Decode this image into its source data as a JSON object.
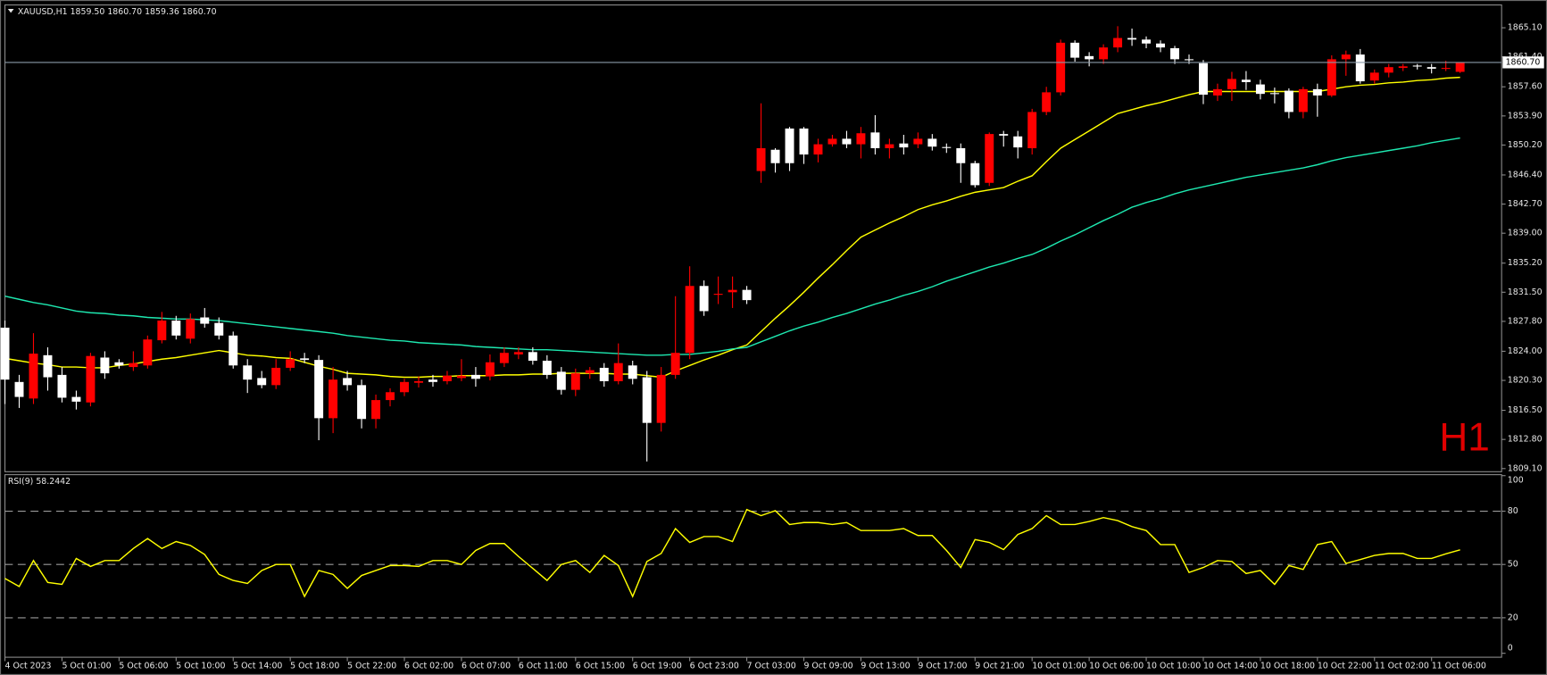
{
  "chart_data": {
    "type": "candlestick",
    "title": "XAUUSD,H1  1859.50 1860.70 1859.36 1860.70",
    "watermark": "H1",
    "categories": [
      "4 Oct 2023",
      null,
      null,
      null,
      "5 Oct 01:00",
      null,
      null,
      null,
      "5 Oct 06:00",
      null,
      null,
      null,
      "5 Oct 10:00",
      null,
      null,
      null,
      "5 Oct 14:00",
      null,
      null,
      null,
      "5 Oct 18:00",
      null,
      null,
      null,
      "5 Oct 22:00",
      null,
      null,
      null,
      "6 Oct 02:00",
      null,
      null,
      null,
      "6 Oct 07:00",
      null,
      null,
      null,
      "6 Oct 11:00",
      null,
      null,
      null,
      "6 Oct 15:00",
      null,
      null,
      null,
      "6 Oct 19:00",
      null,
      null,
      null,
      "6 Oct 23:00",
      null,
      null,
      null,
      "7 Oct 03:00",
      null,
      null,
      null,
      "9 Oct 09:00",
      null,
      null,
      null,
      "9 Oct 13:00",
      null,
      null,
      null,
      "9 Oct 17:00",
      null,
      null,
      null,
      "9 Oct 21:00",
      null,
      null,
      null,
      "10 Oct 01:00",
      null,
      null,
      null,
      "10 Oct 06:00",
      null,
      null,
      null,
      "10 Oct 10:00",
      null,
      null,
      null,
      "10 Oct 14:00",
      null,
      null,
      null,
      "10 Oct 18:00",
      null,
      null,
      null,
      "10 Oct 22:00",
      null,
      null,
      null,
      "11 Oct 02:00",
      null,
      null,
      null,
      "11 Oct 06:00",
      null,
      null
    ],
    "open": [
      1827.0,
      1820.1,
      1818.0,
      1823.5,
      1821.0,
      1818.2,
      1817.5,
      1823.2,
      1822.6,
      1822.0,
      1822.2,
      1825.4,
      1827.9,
      1825.6,
      1828.3,
      1827.6,
      1826.0,
      1822.2,
      1820.6,
      1819.7,
      1821.9,
      1823.1,
      1822.9,
      1815.5,
      1820.6,
      1819.7,
      1815.4,
      1817.8,
      1818.8,
      1820.0,
      1820.4,
      1820.2,
      1820.6,
      1821.0,
      1820.8,
      1822.5,
      1823.6,
      1823.9,
      1822.8,
      1821.4,
      1819.1,
      1821.2,
      1821.9,
      1820.2,
      1822.2,
      1820.7,
      1814.9,
      1821.0,
      1823.8,
      1832.3,
      1831.2,
      1831.5,
      1831.8,
      1846.9,
      1849.6,
      1852.3,
      1852.3,
      1849.0,
      1850.3,
      1851.0,
      1850.3,
      1851.8,
      1849.8,
      1850.4,
      1850.3,
      1851.0,
      1849.95,
      1849.8,
      1847.9,
      1845.4,
      1851.6,
      1851.3,
      1849.8,
      1854.4,
      1856.9,
      1863.2,
      1861.5,
      1861.1,
      1862.6,
      1863.8,
      1863.6,
      1863.1,
      1862.5,
      1861.1,
      1860.6,
      1856.5,
      1857.3,
      1858.5,
      1857.9,
      1856.8,
      1857.1,
      1854.4,
      1857.3,
      1856.5,
      1861.1,
      1861.7,
      1858.4,
      1859.4,
      1860.0,
      1860.3,
      1860.1,
      1860.0,
      1859.5
    ],
    "high": [
      1827.9,
      1821.0,
      1826.3,
      1824.5,
      1822.0,
      1819.0,
      1823.8,
      1824.0,
      1823.0,
      1824.0,
      1826.0,
      1829.0,
      1828.5,
      1828.8,
      1829.5,
      1828.3,
      1826.5,
      1823.0,
      1821.5,
      1823.0,
      1824.0,
      1823.8,
      1823.5,
      1822.0,
      1821.5,
      1820.4,
      1818.5,
      1819.3,
      1820.5,
      1820.8,
      1821.0,
      1821.5,
      1823.0,
      1822.0,
      1823.6,
      1824.5,
      1824.5,
      1824.5,
      1823.5,
      1822.0,
      1821.8,
      1822.0,
      1822.5,
      1825.0,
      1822.8,
      1821.5,
      1822.0,
      1831.0,
      1834.8,
      1833.0,
      1833.5,
      1833.5,
      1832.3,
      1855.5,
      1849.8,
      1852.5,
      1852.5,
      1851.0,
      1851.5,
      1852.0,
      1852.5,
      1854.0,
      1851.0,
      1851.5,
      1851.8,
      1851.6,
      1850.4,
      1850.4,
      1848.2,
      1851.8,
      1852.0,
      1852.0,
      1854.8,
      1857.6,
      1863.6,
      1863.5,
      1862.0,
      1863.0,
      1865.3,
      1865.0,
      1864.0,
      1863.5,
      1862.8,
      1861.7,
      1861.0,
      1858.0,
      1859.5,
      1859.6,
      1858.5,
      1857.5,
      1857.4,
      1857.6,
      1858.0,
      1861.6,
      1862.2,
      1862.4,
      1859.8,
      1860.5,
      1860.5,
      1860.5,
      1860.5,
      1860.9,
      1860.7
    ],
    "low": [
      1817.3,
      1816.8,
      1817.3,
      1819.0,
      1817.5,
      1816.6,
      1817.0,
      1820.5,
      1821.8,
      1821.5,
      1821.8,
      1825.0,
      1825.5,
      1825.0,
      1827.0,
      1825.5,
      1821.8,
      1818.7,
      1819.3,
      1819.2,
      1821.5,
      1822.5,
      1812.7,
      1813.6,
      1819.0,
      1814.2,
      1814.2,
      1817.0,
      1818.3,
      1819.4,
      1819.5,
      1819.8,
      1820.2,
      1819.5,
      1820.3,
      1822.0,
      1823.0,
      1822.3,
      1820.5,
      1818.5,
      1818.3,
      1820.5,
      1819.5,
      1819.8,
      1819.8,
      1810.0,
      1813.8,
      1820.5,
      1823.0,
      1828.5,
      1830.0,
      1829.5,
      1830.0,
      1845.4,
      1846.7,
      1846.9,
      1847.8,
      1848.0,
      1850.0,
      1849.8,
      1848.5,
      1849.0,
      1848.5,
      1849.0,
      1849.8,
      1849.5,
      1849.2,
      1845.4,
      1844.8,
      1845.0,
      1850.0,
      1848.5,
      1849.0,
      1854.0,
      1856.5,
      1860.8,
      1860.2,
      1860.5,
      1862.0,
      1862.8,
      1862.5,
      1862.0,
      1860.5,
      1860.5,
      1855.4,
      1855.8,
      1855.8,
      1857.2,
      1856.0,
      1855.5,
      1853.6,
      1853.6,
      1853.8,
      1856.3,
      1859.0,
      1858.0,
      1858.0,
      1858.8,
      1859.6,
      1859.8,
      1859.3,
      1859.6,
      1859.36
    ],
    "close": [
      1820.4,
      1818.2,
      1823.7,
      1820.7,
      1818.1,
      1817.6,
      1823.4,
      1821.2,
      1822.2,
      1822.5,
      1825.5,
      1827.9,
      1826.0,
      1828.1,
      1827.5,
      1826.0,
      1822.2,
      1820.4,
      1819.7,
      1821.9,
      1823.0,
      1822.9,
      1815.5,
      1820.4,
      1819.7,
      1815.4,
      1817.8,
      1818.8,
      1820.1,
      1820.2,
      1820.1,
      1820.9,
      1820.9,
      1820.5,
      1822.6,
      1823.8,
      1823.9,
      1822.8,
      1821.0,
      1819.1,
      1821.2,
      1821.6,
      1820.2,
      1822.5,
      1820.5,
      1814.9,
      1821.0,
      1823.8,
      1832.3,
      1829.1,
      1831.3,
      1831.8,
      1830.5,
      1849.8,
      1847.9,
      1847.9,
      1849.0,
      1850.3,
      1851.0,
      1850.3,
      1851.7,
      1849.8,
      1850.3,
      1849.9,
      1851.0,
      1850.0,
      1849.9,
      1847.9,
      1845.1,
      1851.6,
      1851.4,
      1849.9,
      1854.4,
      1856.9,
      1863.2,
      1861.3,
      1861.1,
      1862.6,
      1863.8,
      1863.6,
      1863.1,
      1862.6,
      1861.1,
      1861.0,
      1856.6,
      1857.3,
      1858.6,
      1858.2,
      1856.7,
      1856.7,
      1854.4,
      1857.3,
      1856.5,
      1861.1,
      1861.7,
      1858.3,
      1859.4,
      1860.1,
      1860.2,
      1860.2,
      1859.9,
      1860.0,
      1860.7
    ],
    "up_color": "#ff0000",
    "down_color": "#ffffff",
    "overlays": [
      {
        "color": "#ffff00",
        "values": [
          1823.1,
          1822.8,
          1822.5,
          1822.3,
          1822.0,
          1822.0,
          1821.9,
          1821.9,
          1822.2,
          1822.4,
          1822.7,
          1823.0,
          1823.2,
          1823.5,
          1823.8,
          1824.1,
          1823.8,
          1823.5,
          1823.4,
          1823.2,
          1823.1,
          1822.6,
          1822.1,
          1821.7,
          1821.2,
          1821.1,
          1821.0,
          1820.8,
          1820.7,
          1820.7,
          1820.8,
          1820.8,
          1820.9,
          1820.9,
          1820.9,
          1821.0,
          1821.0,
          1821.1,
          1821.1,
          1821.2,
          1821.2,
          1821.2,
          1821.2,
          1821.1,
          1821.1,
          1820.9,
          1820.7,
          1821.5,
          1822.2,
          1822.9,
          1823.5,
          1824.2,
          1824.8,
          1826.5,
          1828.2,
          1829.8,
          1831.5,
          1833.3,
          1835.0,
          1836.8,
          1838.5,
          1839.4,
          1840.3,
          1841.1,
          1842.0,
          1842.6,
          1843.1,
          1843.7,
          1844.2,
          1844.5,
          1844.8,
          1845.6,
          1846.3,
          1848.1,
          1849.8,
          1850.9,
          1852.0,
          1853.1,
          1854.2,
          1854.7,
          1855.2,
          1855.6,
          1856.1,
          1856.6,
          1857.0,
          1857.0,
          1857.0,
          1857.0,
          1857.0,
          1857.0,
          1857.0,
          1857.0,
          1857.0,
          1857.3,
          1857.6,
          1857.8,
          1857.9,
          1858.1,
          1858.2,
          1858.4,
          1858.5,
          1858.7,
          1858.8
        ]
      },
      {
        "color": "#1ee8b0",
        "values": [
          1831.0,
          1830.6,
          1830.2,
          1829.9,
          1829.5,
          1829.1,
          1828.9,
          1828.8,
          1828.6,
          1828.5,
          1828.3,
          1828.2,
          1828.1,
          1828.1,
          1828.0,
          1827.9,
          1827.7,
          1827.5,
          1827.3,
          1827.1,
          1826.9,
          1826.7,
          1826.5,
          1826.3,
          1826.0,
          1825.8,
          1825.6,
          1825.4,
          1825.3,
          1825.1,
          1825.0,
          1824.9,
          1824.8,
          1824.6,
          1824.5,
          1824.4,
          1824.3,
          1824.2,
          1824.2,
          1824.1,
          1824.0,
          1823.9,
          1823.8,
          1823.7,
          1823.6,
          1823.5,
          1823.5,
          1823.6,
          1823.6,
          1823.8,
          1824.0,
          1824.3,
          1824.5,
          1825.2,
          1825.9,
          1826.6,
          1827.2,
          1827.7,
          1828.3,
          1828.8,
          1829.4,
          1830.0,
          1830.5,
          1831.1,
          1831.6,
          1832.2,
          1832.9,
          1833.5,
          1834.1,
          1834.7,
          1835.2,
          1835.8,
          1836.3,
          1837.1,
          1838.0,
          1838.8,
          1839.7,
          1840.6,
          1841.4,
          1842.3,
          1842.9,
          1843.4,
          1844.0,
          1844.5,
          1844.9,
          1845.3,
          1845.7,
          1846.1,
          1846.4,
          1846.7,
          1847.0,
          1847.3,
          1847.7,
          1848.2,
          1848.6,
          1848.9,
          1849.2,
          1849.5,
          1849.8,
          1850.1,
          1850.5,
          1850.8,
          1851.1
        ]
      }
    ],
    "ylim": [
      1808.7,
      1868.0
    ],
    "yticks": [
      {
        "value": 1809.1,
        "label": "1809.10"
      },
      {
        "value": 1812.8,
        "label": "1812.80"
      },
      {
        "value": 1816.5,
        "label": "1816.50"
      },
      {
        "value": 1820.3,
        "label": "1820.30"
      },
      {
        "value": 1824.0,
        "label": "1824.00"
      },
      {
        "value": 1827.8,
        "label": "1827.80"
      },
      {
        "value": 1831.5,
        "label": "1831.50"
      },
      {
        "value": 1835.2,
        "label": "1835.20"
      },
      {
        "value": 1839.0,
        "label": "1839.00"
      },
      {
        "value": 1842.7,
        "label": "1842.70"
      },
      {
        "value": 1846.4,
        "label": "1846.40"
      },
      {
        "value": 1850.2,
        "label": "1850.20"
      },
      {
        "value": 1853.9,
        "label": "1853.90"
      },
      {
        "value": 1857.6,
        "label": "1857.60"
      },
      {
        "value": 1861.4,
        "label": "1861.40"
      },
      {
        "value": 1865.1,
        "label": "1865.10"
      }
    ],
    "price_line": {
      "value": 1860.7,
      "label": "1860.70",
      "color": "#8a9aa8"
    },
    "indicator": {
      "type": "line",
      "title": "RSI(9) 58.2442",
      "color": "#ffff00",
      "values": [
        42.1,
        37.6,
        52.2,
        39.9,
        38.8,
        53.4,
        48.9,
        52.2,
        52.2,
        59.0,
        64.6,
        59.0,
        62.9,
        60.7,
        55.6,
        44.4,
        41.0,
        39.3,
        46.6,
        50.0,
        50.0,
        32.0,
        46.6,
        44.4,
        36.5,
        43.8,
        46.6,
        49.4,
        49.4,
        48.9,
        52.2,
        52.2,
        50.0,
        57.9,
        61.8,
        61.8,
        54.5,
        47.8,
        41.0,
        50.0,
        52.2,
        45.5,
        55.1,
        49.4,
        32.0,
        51.7,
        56.2,
        70.2,
        62.4,
        65.7,
        65.7,
        62.9,
        80.9,
        77.5,
        80.3,
        72.5,
        73.6,
        73.6,
        72.5,
        73.6,
        69.1,
        69.1,
        69.1,
        70.2,
        66.3,
        66.3,
        57.9,
        48.3,
        64.0,
        62.4,
        58.4,
        66.9,
        70.2,
        77.5,
        72.5,
        72.5,
        74.2,
        76.4,
        74.7,
        71.3,
        69.1,
        61.2,
        61.2,
        45.5,
        48.3,
        52.2,
        51.7,
        44.9,
        46.6,
        38.8,
        49.4,
        47.2,
        61.2,
        62.9,
        50.6,
        52.8,
        55.1,
        56.2,
        56.2,
        53.4,
        53.4,
        56.0,
        58.2442
      ],
      "ylim": [
        0,
        100
      ],
      "yticks": [
        0,
        20,
        50,
        80,
        100
      ],
      "levels": [
        20,
        50,
        80
      ]
    }
  }
}
